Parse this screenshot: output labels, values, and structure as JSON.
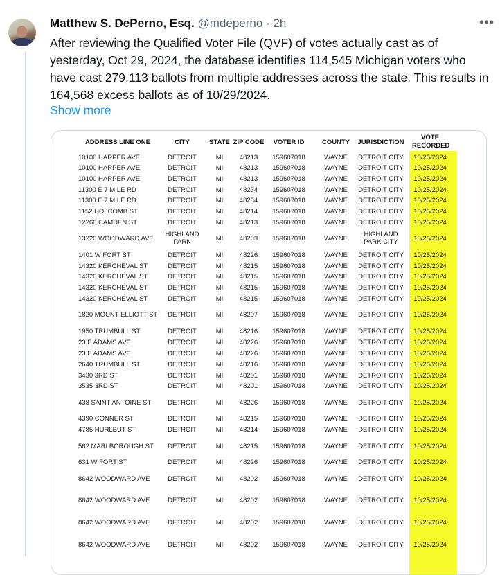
{
  "tweet": {
    "author_name": "Matthew S. DePerno, Esq.",
    "handle": "@mdeperno",
    "separator": "·",
    "time": "2h",
    "more_icon": "more-horizontal-icon",
    "text": "After reviewing the Qualified Voter File (QVF) of votes actually cast as of yesterday, Oct 29, 2024, the database identifies 114,545 Michigan voters who have cast 279,113 ballots from multiple addresses across the state. This results in 164,568 excess ballots as of 10/29/2024.",
    "show_more": "Show more",
    "link_color": "#1d9bf0",
    "highlight_color": "#f7fb2a"
  },
  "table": {
    "headers": [
      "ADDRESS LINE ONE",
      "CITY",
      "STATE",
      "ZIP CODE",
      "VOTER ID",
      "COUNTY",
      "JURISDICTION",
      "VOTE RECORDED"
    ],
    "rows": [
      [
        "10100 HARPER AVE",
        "DETROIT",
        "MI",
        "48213",
        "159607018",
        "WAYNE",
        "DETROIT CITY",
        "10/25/2024"
      ],
      [
        "10100 HARPER AVE",
        "DETROIT",
        "MI",
        "48213",
        "159607018",
        "WAYNE",
        "DETROIT CITY",
        "10/25/2024"
      ],
      [
        "10100 HARPER AVE",
        "DETROIT",
        "MI",
        "48213",
        "159607018",
        "WAYNE",
        "DETROIT CITY",
        "10/25/2024"
      ],
      [
        "11300 E 7 MILE RD",
        "DETROIT",
        "MI",
        "48234",
        "159607018",
        "WAYNE",
        "DETROIT CITY",
        "10/25/2024"
      ],
      [
        "11300 E 7 MILE RD",
        "DETROIT",
        "MI",
        "48234",
        "159607018",
        "WAYNE",
        "DETROIT CITY",
        "10/25/2024"
      ],
      [
        "1152 HOLCOMB ST",
        "DETROIT",
        "MI",
        "48214",
        "159607018",
        "WAYNE",
        "DETROIT CITY",
        "10/25/2024"
      ],
      [
        "12260 CAMDEN ST",
        "DETROIT",
        "MI",
        "48213",
        "159607018",
        "WAYNE",
        "DETROIT CITY",
        "10/25/2024"
      ],
      [
        "13220 WOODWARD AVE",
        "HIGHLAND PARK",
        "MI",
        "48203",
        "159607018",
        "WAYNE",
        "HIGHLAND PARK CITY",
        "10/25/2024"
      ],
      [
        "1401 W FORT ST",
        "DETROIT",
        "MI",
        "48226",
        "159607018",
        "WAYNE",
        "DETROIT CITY",
        "10/25/2024"
      ],
      [
        "14320 KERCHEVAL ST",
        "DETROIT",
        "MI",
        "48215",
        "159607018",
        "WAYNE",
        "DETROIT CITY",
        "10/25/2024"
      ],
      [
        "14320 KERCHEVAL ST",
        "DETROIT",
        "MI",
        "48215",
        "159607018",
        "WAYNE",
        "DETROIT CITY",
        "10/25/2024"
      ],
      [
        "14320 KERCHEVAL ST",
        "DETROIT",
        "MI",
        "48215",
        "159607018",
        "WAYNE",
        "DETROIT CITY",
        "10/25/2024"
      ],
      [
        "14320 KERCHEVAL ST",
        "DETROIT",
        "MI",
        "48215",
        "159607018",
        "WAYNE",
        "DETROIT CITY",
        "10/25/2024"
      ],
      [
        "1820 MOUNT ELLIOTT ST",
        "DETROIT",
        "MI",
        "48207",
        "159607018",
        "WAYNE",
        "DETROIT CITY",
        "10/25/2024"
      ],
      [
        "1950 TRUMBULL ST",
        "DETROIT",
        "MI",
        "48216",
        "159607018",
        "WAYNE",
        "DETROIT CITY",
        "10/25/2024"
      ],
      [
        "23 E ADAMS AVE",
        "DETROIT",
        "MI",
        "48226",
        "159607018",
        "WAYNE",
        "DETROIT CITY",
        "10/25/2024"
      ],
      [
        "23 E ADAMS AVE",
        "DETROIT",
        "MI",
        "48226",
        "159607018",
        "WAYNE",
        "DETROIT CITY",
        "10/25/2024"
      ],
      [
        "2640 TRUMBULL ST",
        "DETROIT",
        "MI",
        "48216",
        "159607018",
        "WAYNE",
        "DETROIT CITY",
        "10/25/2024"
      ],
      [
        "3430 3RD ST",
        "DETROIT",
        "MI",
        "48201",
        "159607018",
        "WAYNE",
        "DETROIT CITY",
        "10/25/2024"
      ],
      [
        "3535 3RD ST",
        "DETROIT",
        "MI",
        "48201",
        "159607018",
        "WAYNE",
        "DETROIT CITY",
        "10/25/2024"
      ],
      [
        "438 SAINT ANTOINE ST",
        "DETROIT",
        "MI",
        "48226",
        "159607018",
        "WAYNE",
        "DETROIT CITY",
        "10/25/2024"
      ],
      [
        "4390 CONNER ST",
        "DETROIT",
        "MI",
        "48215",
        "159607018",
        "WAYNE",
        "DETROIT CITY",
        "10/25/2024"
      ],
      [
        "4785 HURLBUT ST",
        "DETROIT",
        "MI",
        "48214",
        "159607018",
        "WAYNE",
        "DETROIT CITY",
        "10/25/2024"
      ],
      [
        "562 MARLBOROUGH ST",
        "DETROIT",
        "MI",
        "48215",
        "159607018",
        "WAYNE",
        "DETROIT CITY",
        "10/25/2024"
      ],
      [
        "631 W FORT ST",
        "DETROIT",
        "MI",
        "48226",
        "159607018",
        "WAYNE",
        "DETROIT CITY",
        "10/25/2024"
      ],
      [
        "8642 WOODWARD AVE",
        "DETROIT",
        "MI",
        "48202",
        "159607018",
        "WAYNE",
        "DETROIT CITY",
        "10/25/2024"
      ],
      [
        "8642 WOODWARD AVE",
        "DETROIT",
        "MI",
        "48202",
        "159607018",
        "WAYNE",
        "DETROIT CITY",
        "10/25/2024"
      ],
      [
        "8642 WOODWARD AVE",
        "DETROIT",
        "MI",
        "48202",
        "159607018",
        "WAYNE",
        "DETROIT CITY",
        "10/25/2024"
      ],
      [
        "8642 WOODWARD AVE",
        "DETROIT",
        "MI",
        "48202",
        "159607018",
        "WAYNE",
        "DETROIT CITY",
        "10/25/2024"
      ]
    ]
  }
}
